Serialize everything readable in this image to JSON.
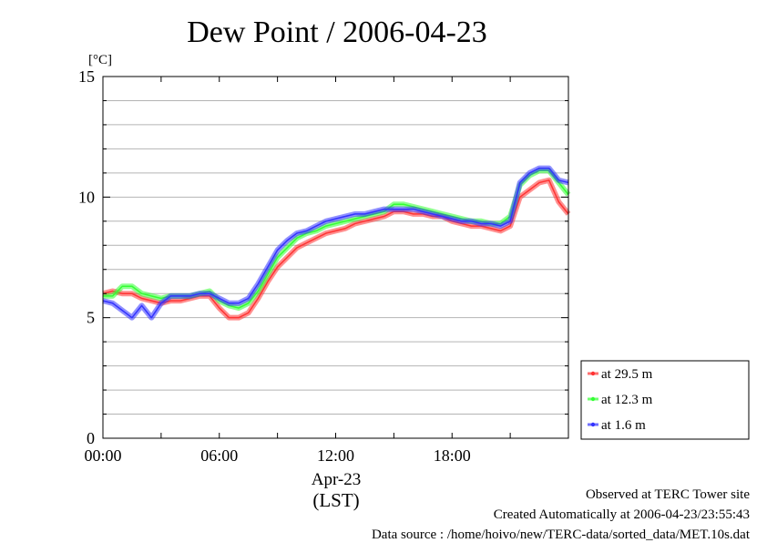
{
  "chart_data": {
    "type": "line",
    "title": "Dew Point / 2006-04-23",
    "ylabel": "[°C]",
    "xlabel": "Apr-23",
    "xlabel2": "(LST)",
    "ylim": [
      0,
      15
    ],
    "xlim_hours": [
      0,
      24
    ],
    "y_ticks": [
      "0",
      "5",
      "10",
      "15"
    ],
    "y_tick_values": [
      0,
      5,
      10,
      15
    ],
    "x_ticks": [
      "00:00",
      "06:00",
      "12:00",
      "18:00"
    ],
    "x_tick_hours": [
      0,
      6,
      12,
      18
    ],
    "grid": "horizontal every 1 °C",
    "legend_position": "right",
    "series": [
      {
        "name": "at 29.5 m",
        "color": "#ff3333",
        "x": [
          0,
          0.5,
          1,
          1.5,
          2,
          2.5,
          3,
          3.5,
          4,
          4.5,
          5,
          5.5,
          6,
          6.5,
          7,
          7.5,
          8,
          8.5,
          9,
          9.5,
          10,
          10.5,
          11,
          11.5,
          12,
          12.5,
          13,
          13.5,
          14,
          14.5,
          15,
          15.5,
          16,
          16.5,
          17,
          17.5,
          18,
          18.5,
          19,
          19.5,
          20,
          20.5,
          21,
          21.5,
          22,
          22.5,
          23,
          23.5,
          24
        ],
        "values": [
          6.0,
          6.1,
          6.0,
          6.0,
          5.8,
          5.7,
          5.6,
          5.7,
          5.7,
          5.8,
          5.9,
          5.9,
          5.4,
          5.0,
          5.0,
          5.2,
          5.8,
          6.5,
          7.1,
          7.5,
          7.9,
          8.1,
          8.3,
          8.5,
          8.6,
          8.7,
          8.9,
          9.0,
          9.1,
          9.2,
          9.4,
          9.4,
          9.3,
          9.3,
          9.2,
          9.2,
          9.0,
          8.9,
          8.8,
          8.8,
          8.7,
          8.6,
          8.8,
          10.0,
          10.3,
          10.6,
          10.7,
          9.8,
          9.3
        ]
      },
      {
        "name": "at 12.3 m",
        "color": "#33ff33",
        "x": [
          0,
          0.5,
          1,
          1.5,
          2,
          2.5,
          3,
          3.5,
          4,
          4.5,
          5,
          5.5,
          6,
          6.5,
          7,
          7.5,
          8,
          8.5,
          9,
          9.5,
          10,
          10.5,
          11,
          11.5,
          12,
          12.5,
          13,
          13.5,
          14,
          14.5,
          15,
          15.5,
          16,
          16.5,
          17,
          17.5,
          18,
          18.5,
          19,
          19.5,
          20,
          20.5,
          21,
          21.5,
          22,
          22.5,
          23,
          23.5,
          24
        ],
        "values": [
          5.9,
          5.9,
          6.3,
          6.3,
          6.0,
          5.9,
          5.8,
          5.9,
          5.9,
          5.9,
          6.0,
          6.1,
          5.7,
          5.5,
          5.4,
          5.6,
          6.1,
          6.8,
          7.5,
          7.9,
          8.3,
          8.5,
          8.6,
          8.8,
          8.9,
          9.0,
          9.1,
          9.2,
          9.3,
          9.4,
          9.7,
          9.7,
          9.6,
          9.5,
          9.4,
          9.3,
          9.2,
          9.1,
          9.0,
          9.0,
          8.9,
          8.9,
          9.2,
          10.5,
          10.9,
          11.1,
          11.1,
          10.6,
          10.1
        ]
      },
      {
        "name": "at 1.6 m",
        "color": "#3333ff",
        "x": [
          0,
          0.5,
          1,
          1.5,
          2,
          2.5,
          3,
          3.5,
          4,
          4.5,
          5,
          5.5,
          6,
          6.5,
          7,
          7.5,
          8,
          8.5,
          9,
          9.5,
          10,
          10.5,
          11,
          11.5,
          12,
          12.5,
          13,
          13.5,
          14,
          14.5,
          15,
          15.5,
          16,
          16.5,
          17,
          17.5,
          18,
          18.5,
          19,
          19.5,
          20,
          20.5,
          21,
          21.5,
          22,
          22.5,
          23,
          23.5,
          24
        ],
        "values": [
          5.7,
          5.6,
          5.3,
          5.0,
          5.5,
          5.0,
          5.6,
          5.9,
          5.9,
          5.9,
          6.0,
          6.0,
          5.8,
          5.6,
          5.6,
          5.8,
          6.4,
          7.1,
          7.8,
          8.2,
          8.5,
          8.6,
          8.8,
          9.0,
          9.1,
          9.2,
          9.3,
          9.3,
          9.4,
          9.5,
          9.5,
          9.5,
          9.5,
          9.4,
          9.3,
          9.2,
          9.1,
          9.0,
          9.0,
          8.9,
          8.9,
          8.8,
          9.0,
          10.6,
          11.0,
          11.2,
          11.2,
          10.7,
          10.6
        ]
      }
    ]
  },
  "footer": {
    "observed": "Observed at TERC Tower site",
    "created": "Created Automatically at 2006-04-23/23:55:43",
    "source": "Data source : /home/hoivo/new/TERC-data/sorted_data/MET.10s.dat"
  }
}
